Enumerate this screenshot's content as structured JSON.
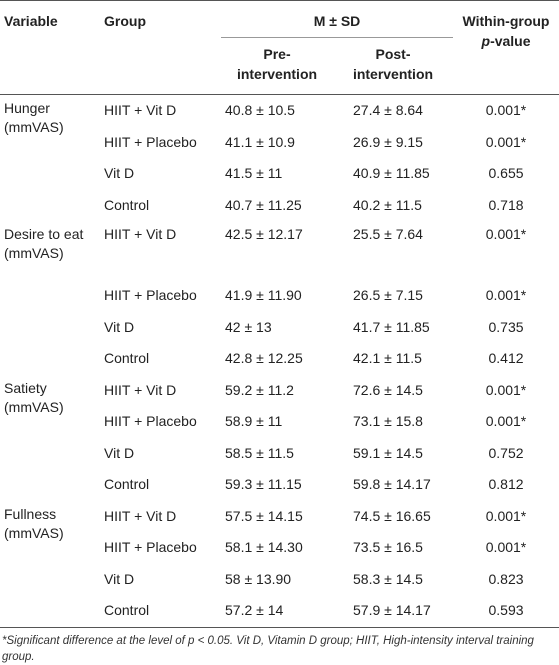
{
  "header": {
    "variable": "Variable",
    "group": "Group",
    "msd": "M ± SD",
    "pre": [
      "Pre-",
      "intervention"
    ],
    "post": [
      "Post-",
      "intervention"
    ],
    "pvalue": {
      "line1": "Within-group",
      "italic": "p",
      "rest": "-value"
    }
  },
  "groups": [
    {
      "variable": "Hunger (mmVAS)",
      "rows": [
        [
          "HIIT + Vit D",
          "40.8 ± 10.5",
          "27.4 ± 8.64",
          "0.001*"
        ],
        [
          "HIIT + Placebo",
          "41.1 ± 10.9",
          "26.9 ± 9.15",
          "0.001*"
        ],
        [
          "Vit D",
          "41.5 ± 11",
          "40.9 ± 11.85",
          "0.655"
        ],
        [
          "Control",
          "40.7 ± 11.25",
          "40.2 ± 11.5",
          "0.718"
        ]
      ]
    },
    {
      "variable": "Desire to eat (mmVAS)",
      "rows": [
        [
          "HIIT + Vit D",
          "42.5 ± 12.17",
          "25.5 ± 7.64",
          "0.001*"
        ],
        [
          "HIIT + Placebo",
          "41.9 ± 11.90",
          "26.5 ± 7.15",
          "0.001*"
        ],
        [
          "Vit D",
          "42 ± 13",
          "41.7 ± 11.85",
          "0.735"
        ],
        [
          "Control",
          "42.8 ± 12.25",
          "42.1 ± 11.5",
          "0.412"
        ]
      ]
    },
    {
      "variable": "Satiety (mmVAS)",
      "rows": [
        [
          "HIIT + Vit D",
          "59.2 ± 11.2",
          "72.6 ± 14.5",
          "0.001*"
        ],
        [
          "HIIT + Placebo",
          "58.9 ± 11",
          "73.1 ± 15.8",
          "0.001*"
        ],
        [
          "Vit D",
          "58.5 ± 11.5",
          "59.1 ± 14.5",
          "0.752"
        ],
        [
          "Control",
          "59.3 ± 11.15",
          "59.8 ± 14.17",
          "0.812"
        ]
      ]
    },
    {
      "variable": "Fullness (mmVAS)",
      "rows": [
        [
          "HIIT + Vit D",
          "57.5 ± 14.15",
          "74.5 ± 16.65",
          "0.001*"
        ],
        [
          "HIIT + Placebo",
          "58.1 ± 14.30",
          "73.5 ± 16.5",
          "0.001*"
        ],
        [
          "Vit D",
          "58 ± 13.90",
          "58.3 ± 14.5",
          "0.823"
        ],
        [
          "Control",
          "57.2 ± 14",
          "57.9 ± 14.17",
          "0.593"
        ]
      ]
    }
  ],
  "footnote": "*Significant difference at the level of p < 0.05. Vit D, Vitamin D group; HIIT, High-intensity interval training group."
}
